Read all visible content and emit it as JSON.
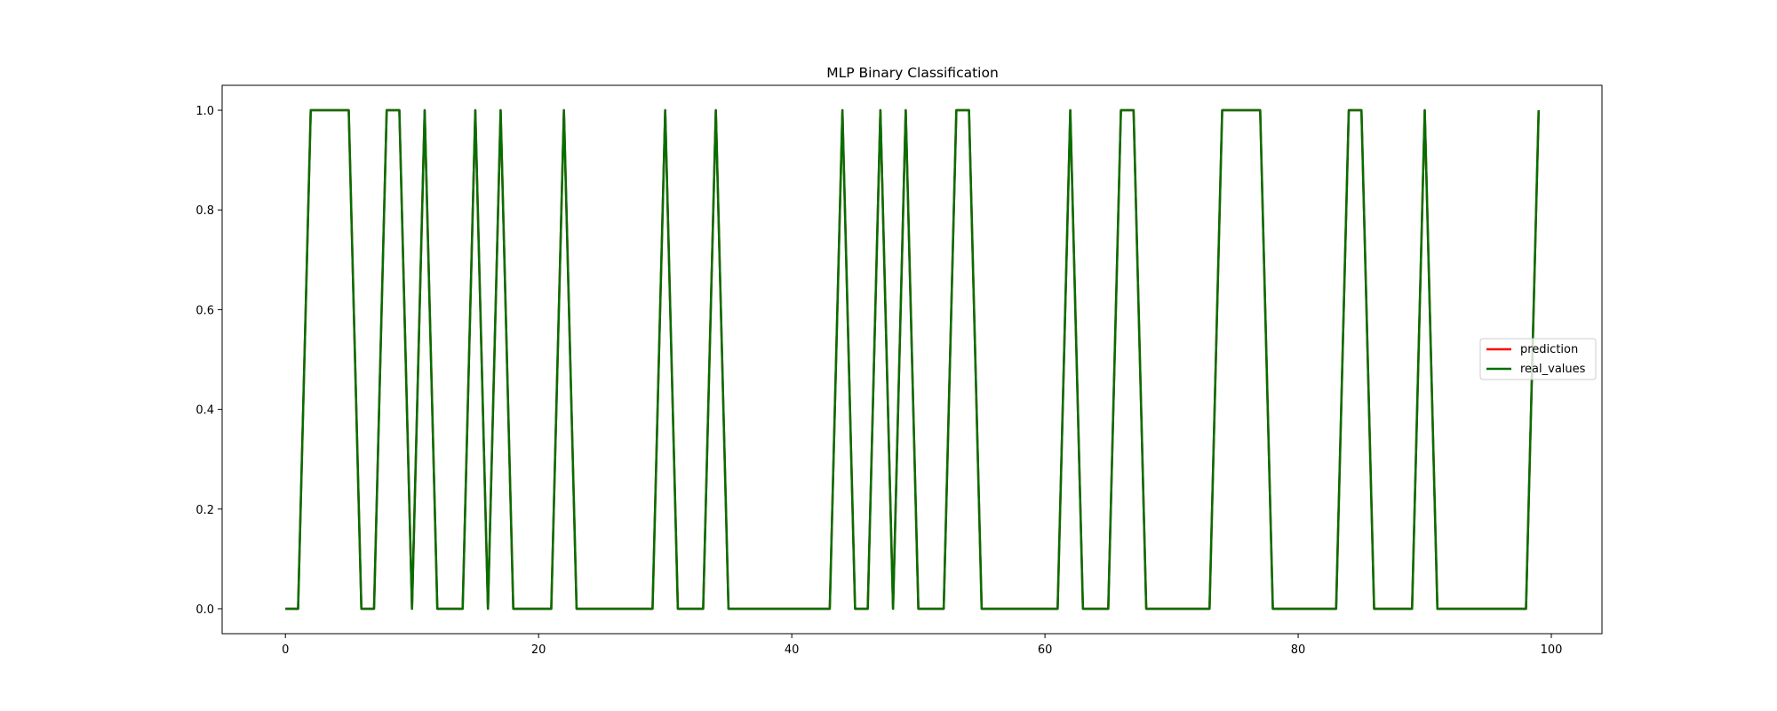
{
  "chart_data": {
    "type": "line",
    "title": "MLP Binary Classification",
    "xlabel": "",
    "ylabel": "",
    "xlim": [
      -5,
      104
    ],
    "ylim": [
      -0.05,
      1.05
    ],
    "xticks": [
      0,
      20,
      40,
      60,
      80,
      100
    ],
    "yticks": [
      0.0,
      0.2,
      0.4,
      0.6,
      0.8,
      1.0
    ],
    "ytick_labels": [
      "0.0",
      "0.2",
      "0.4",
      "0.6",
      "0.8",
      "1.0"
    ],
    "legend_position": "center-right",
    "grid": false,
    "x": [
      0,
      1,
      2,
      3,
      4,
      5,
      6,
      7,
      8,
      9,
      10,
      11,
      12,
      13,
      14,
      15,
      16,
      17,
      18,
      19,
      20,
      21,
      22,
      23,
      24,
      25,
      26,
      27,
      28,
      29,
      30,
      31,
      32,
      33,
      34,
      35,
      36,
      37,
      38,
      39,
      40,
      41,
      42,
      43,
      44,
      45,
      46,
      47,
      48,
      49,
      50,
      51,
      52,
      53,
      54,
      55,
      56,
      57,
      58,
      59,
      60,
      61,
      62,
      63,
      64,
      65,
      66,
      67,
      68,
      69,
      70,
      71,
      72,
      73,
      74,
      75,
      76,
      77,
      78,
      79,
      80,
      81,
      82,
      83,
      84,
      85,
      86,
      87,
      88,
      89,
      90,
      91,
      92,
      93,
      94,
      95,
      96,
      97,
      98,
      99
    ],
    "series": [
      {
        "name": "prediction",
        "color": "#ff0000",
        "values": [
          0,
          0,
          1,
          1,
          1,
          1,
          0,
          0,
          1,
          1,
          0,
          1,
          0,
          0,
          0,
          1,
          0,
          1,
          0,
          0,
          0,
          0,
          1,
          0,
          0,
          0,
          0,
          0,
          0,
          0,
          1,
          0,
          0,
          0,
          1,
          0,
          0,
          0,
          0,
          0,
          0,
          0,
          0,
          0,
          1,
          0,
          0,
          1,
          0,
          1,
          0,
          0,
          0,
          1,
          1,
          0,
          0,
          0,
          0,
          0,
          0,
          0,
          1,
          0,
          0,
          0,
          1,
          1,
          0,
          0,
          0,
          0,
          0,
          0,
          1,
          1,
          1,
          1,
          0,
          0,
          0,
          0,
          0,
          0,
          1,
          1,
          0,
          0,
          0,
          0,
          1,
          0,
          0,
          0,
          0,
          0,
          0,
          0,
          0,
          1
        ]
      },
      {
        "name": "real_values",
        "color": "#007000",
        "values": [
          0,
          0,
          1,
          1,
          1,
          1,
          0,
          0,
          1,
          1,
          0,
          1,
          0,
          0,
          0,
          1,
          0,
          1,
          0,
          0,
          0,
          0,
          1,
          0,
          0,
          0,
          0,
          0,
          0,
          0,
          1,
          0,
          0,
          0,
          1,
          0,
          0,
          0,
          0,
          0,
          0,
          0,
          0,
          0,
          1,
          0,
          0,
          1,
          0,
          1,
          0,
          0,
          0,
          1,
          1,
          0,
          0,
          0,
          0,
          0,
          0,
          0,
          1,
          0,
          0,
          0,
          1,
          1,
          0,
          0,
          0,
          0,
          0,
          0,
          1,
          1,
          1,
          1,
          0,
          0,
          0,
          0,
          0,
          0,
          1,
          1,
          0,
          0,
          0,
          0,
          1,
          0,
          0,
          0,
          0,
          0,
          0,
          0,
          0,
          1
        ]
      }
    ]
  }
}
